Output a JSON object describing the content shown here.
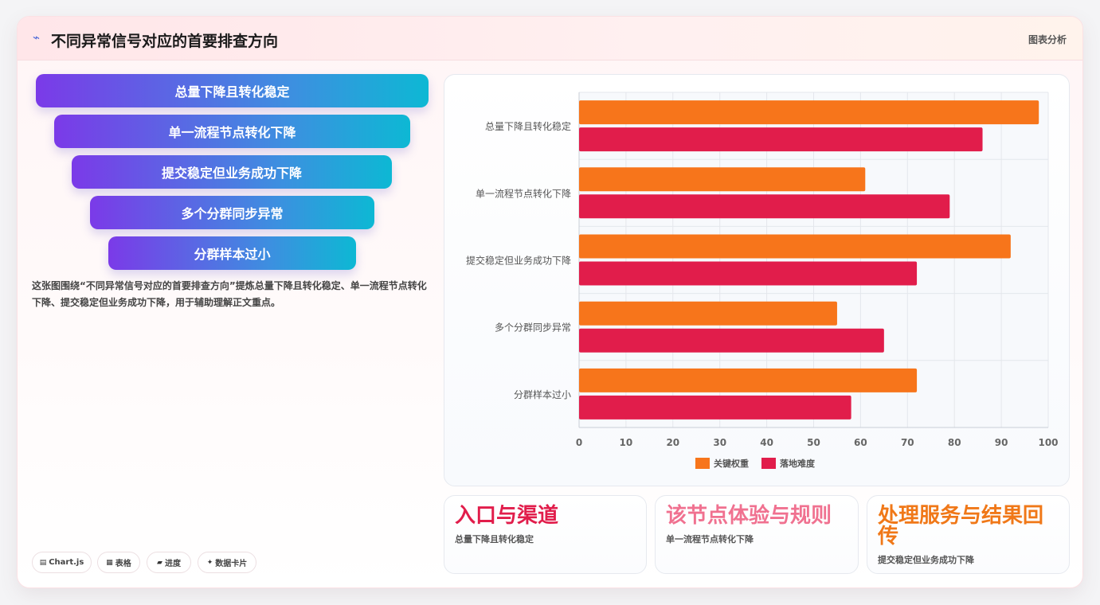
{
  "header": {
    "icon": "pulse-icon",
    "title": "不同异常信号对应的首要排查方向",
    "right_label": "图表分析"
  },
  "funnel": [
    "总量下降且转化稳定",
    "单一流程节点转化下降",
    "提交稳定但业务成功下降",
    "多个分群同步异常",
    "分群样本过小"
  ],
  "description": "这张图围绕“不同异常信号对应的首要排查方向”提炼总量下降且转化稳定、单一流程节点转化下降、提交稳定但业务成功下降，用于辅助理解正文重点。",
  "chips": [
    {
      "icon": "table-icon",
      "label": "Chart.js"
    },
    {
      "icon": "grid-icon",
      "label": "表格"
    },
    {
      "icon": "progress-icon",
      "label": "进度"
    },
    {
      "icon": "sparkle-icon",
      "label": "数据卡片"
    }
  ],
  "chart_data": {
    "type": "bar",
    "orientation": "horizontal",
    "categories": [
      "总量下降且转化稳定",
      "单一流程节点转化下降",
      "提交稳定但业务成功下降",
      "多个分群同步异常",
      "分群样本过小"
    ],
    "series": [
      {
        "name": "关键权重",
        "color": "#f7751b",
        "values": [
          98,
          61,
          92,
          55,
          72
        ]
      },
      {
        "name": "落地难度",
        "color": "#e11d4b",
        "values": [
          86,
          79,
          72,
          65,
          58
        ]
      }
    ],
    "xlim": [
      0,
      100
    ],
    "xticks": [
      0,
      10,
      20,
      30,
      40,
      50,
      60,
      70,
      80,
      90,
      100
    ],
    "grid": true,
    "legend": "bottom"
  },
  "stats": [
    {
      "title": "入口与渠道",
      "subtitle": "总量下降且转化稳定",
      "color": "#e11d4b"
    },
    {
      "title": "该节点体验与规则",
      "subtitle": "单一流程节点转化下降",
      "color": "#f07190"
    },
    {
      "title": "处理服务与结果回传",
      "subtitle": "提交稳定但业务成功下降",
      "color": "#f07818"
    }
  ]
}
